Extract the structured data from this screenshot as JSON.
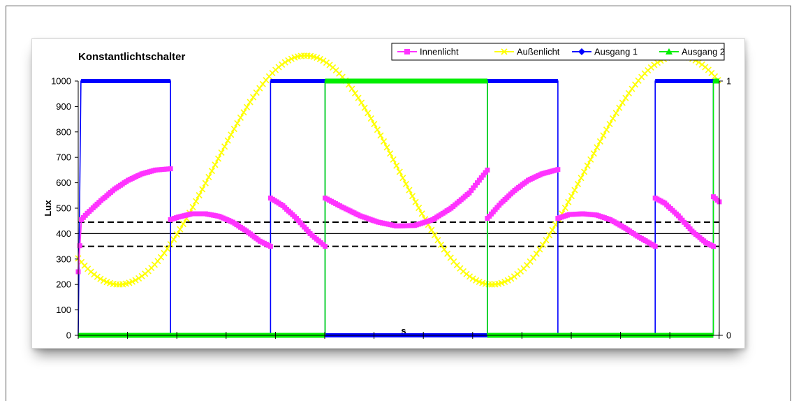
{
  "chart_data": {
    "type": "line",
    "title": "Konstantlichtschalter",
    "xlabel": "s",
    "ylabel": "Lux",
    "ylim": [
      0,
      1000
    ],
    "y_ticks": [
      "0",
      "100",
      "200",
      "300",
      "400",
      "500",
      "600",
      "700",
      "800",
      "900",
      "1000"
    ],
    "y2lim": [
      0,
      1
    ],
    "y2_ticks": [
      "0",
      "1"
    ],
    "x_range": [
      0,
      100
    ],
    "legend_position": "top-right",
    "grid": false,
    "series": [
      {
        "name": "Innenlicht",
        "color": "#ff33ff",
        "marker": "square",
        "axis": "left",
        "segments": [
          {
            "x": [
              0,
              0.7,
              2,
              5,
              8,
              11,
              14,
              17,
              20.3
            ],
            "y": [
              250,
              455,
              480,
              530,
              575,
              610,
              635,
              650,
              655
            ]
          },
          {
            "x": [
              20.3,
              22,
              25,
              28,
              31,
              34,
              37,
              40,
              42.3
            ],
            "y": [
              455,
              465,
              478,
              478,
              468,
              445,
              410,
              370,
              350
            ]
          },
          {
            "x": [
              42.3,
              45,
              48,
              51,
              54.3
            ],
            "y": [
              540,
              510,
              460,
              400,
              350
            ]
          },
          {
            "x": [
              54.3,
              58,
              62,
              66,
              70,
              74,
              78,
              82,
              86,
              90
            ],
            "y": [
              540,
              505,
              470,
              445,
              430,
              432,
              455,
              500,
              560,
              650
            ]
          },
          {
            "x": [
              90,
              93,
              96,
              99,
              102,
              105.5
            ],
            "y": [
              460,
              520,
              570,
              610,
              635,
              652
            ]
          },
          {
            "x": [
              105.5,
              108,
              111,
              114,
              117,
              120,
              123,
              126.9
            ],
            "y": [
              460,
              475,
              478,
              473,
              455,
              425,
              390,
              350
            ]
          },
          {
            "x": [
              126.9,
              129,
              132,
              135,
              138,
              139.7
            ],
            "y": [
              540,
              520,
              470,
              410,
              365,
              350
            ]
          },
          {
            "x": [
              139.7,
              141
            ],
            "y": [
              545,
              525
            ]
          }
        ]
      },
      {
        "name": "Außenlicht",
        "color": "#ffff00",
        "marker": "x",
        "axis": "left",
        "function": "650 - 450*sin(2*pi*(x + 11.5)/82)",
        "x": [
          0,
          141
        ]
      },
      {
        "name": "Ausgang 1",
        "color": "#0000ff",
        "marker": "diamond",
        "axis": "right",
        "steps": [
          [
            0,
            0
          ],
          [
            0.6,
            1
          ],
          [
            20.3,
            1
          ],
          [
            20.3,
            0
          ],
          [
            42.3,
            0
          ],
          [
            42.3,
            1
          ],
          [
            54.3,
            1
          ],
          [
            54.3,
            0
          ],
          [
            90,
            0
          ],
          [
            90,
            1
          ],
          [
            105.5,
            1
          ],
          [
            105.5,
            0
          ],
          [
            126.9,
            0
          ],
          [
            126.9,
            1
          ],
          [
            139.7,
            1
          ],
          [
            139.7,
            0
          ]
        ]
      },
      {
        "name": "Ausgang 2",
        "color": "#00ee00",
        "marker": "triangle",
        "axis": "right",
        "steps": [
          [
            0,
            0
          ],
          [
            54.3,
            0
          ],
          [
            54.3,
            1
          ],
          [
            90,
            1
          ],
          [
            90,
            0
          ],
          [
            139.7,
            0
          ],
          [
            139.7,
            1
          ],
          [
            141,
            1
          ]
        ]
      }
    ],
    "reference_lines": [
      {
        "y": 400,
        "style": "solid",
        "axis": "left"
      },
      {
        "y": 445,
        "style": "dashed",
        "axis": "left"
      },
      {
        "y": 350,
        "style": "dashed",
        "axis": "left"
      }
    ]
  }
}
